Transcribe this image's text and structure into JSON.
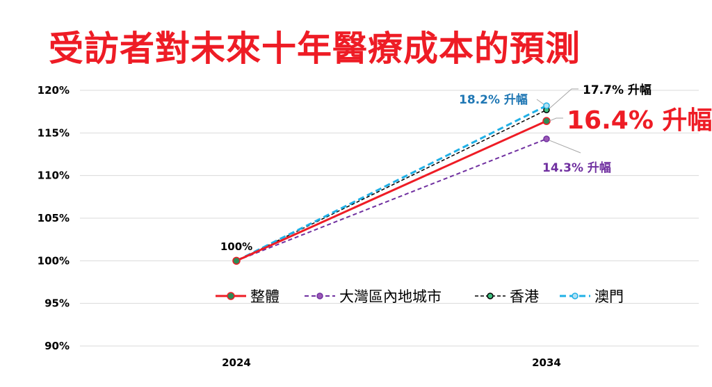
{
  "title": "受訪者對未來十年醫療成本的預測",
  "chart_data": {
    "type": "line",
    "x": [
      "2024",
      "2034"
    ],
    "ylim": [
      90,
      120
    ],
    "yticks": [
      "90%",
      "95%",
      "100%",
      "105%",
      "110%",
      "115%",
      "120%"
    ],
    "series": [
      {
        "name": "整體",
        "values": [
          100,
          116.4
        ],
        "color": "#ee1c25",
        "style": "solid",
        "label_start": "100%",
        "label_end": "16.4% 升幅"
      },
      {
        "name": "大灣區內地城市",
        "values": [
          100,
          114.3
        ],
        "color": "#7030a0",
        "style": "dashed",
        "label_end": "14.3% 升幅"
      },
      {
        "name": "香港",
        "values": [
          100,
          117.7
        ],
        "color": "#000000",
        "style": "dashed",
        "label_end": "17.7% 升幅"
      },
      {
        "name": "澳門",
        "values": [
          100,
          118.2
        ],
        "color": "#1fb0e6",
        "style": "dashed",
        "label_end": "18.2% 升幅"
      }
    ],
    "colors": {
      "label_macau": "#1f77b4"
    },
    "grid": true,
    "legend": "bottom-center"
  }
}
